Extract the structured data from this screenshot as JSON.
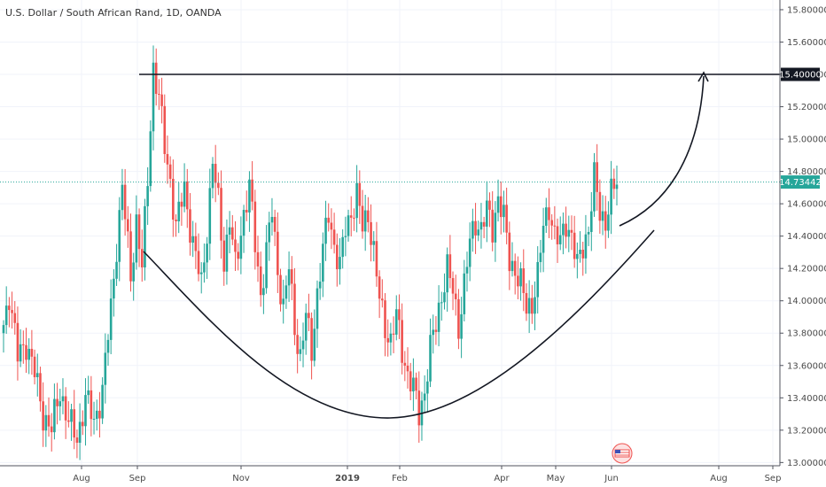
{
  "chart_data": {
    "type": "candlestick",
    "title": "U.S. Dollar / South African Rand, 1D, OANDA",
    "ylim": [
      12.98,
      15.86
    ],
    "yticks": [
      "15.80000",
      "15.60000",
      "15.40000",
      "15.20000",
      "15.00000",
      "14.80000",
      "14.60000",
      "14.40000",
      "14.20000",
      "14.00000",
      "13.80000",
      "13.60000",
      "13.40000",
      "13.20000",
      "13.00000"
    ],
    "yvalues": [
      15.8,
      15.6,
      15.4,
      15.2,
      15.0,
      14.8,
      14.6,
      14.4,
      14.2,
      14.0,
      13.8,
      13.6,
      13.4,
      13.2,
      13.0
    ],
    "xticks": [
      {
        "label": "Aug",
        "bold": false
      },
      {
        "label": "Sep",
        "bold": false
      },
      {
        "label": "Nov",
        "bold": false
      },
      {
        "label": "2019",
        "bold": true
      },
      {
        "label": "Feb",
        "bold": false
      },
      {
        "label": "Apr",
        "bold": false
      },
      {
        "label": "May",
        "bold": false
      },
      {
        "label": "Jun",
        "bold": false
      },
      {
        "label": "Aug",
        "bold": false
      },
      {
        "label": "Sep",
        "bold": false
      }
    ],
    "resistance": {
      "value": 15.4,
      "label": "15.40000"
    },
    "last_price": {
      "value": 14.73442,
      "label": "14.73442"
    },
    "up_color": "#26a69a",
    "down_color": "#ef5350",
    "keypoints": [
      [
        0,
        13.85
      ],
      [
        2,
        14.05
      ],
      [
        5,
        13.65
      ],
      [
        8,
        13.75
      ],
      [
        11,
        13.55
      ],
      [
        14,
        13.3
      ],
      [
        17,
        13.2
      ],
      [
        20,
        13.45
      ],
      [
        23,
        13.25
      ],
      [
        26,
        13.15
      ],
      [
        29,
        13.4
      ],
      [
        32,
        13.25
      ],
      [
        35,
        13.45
      ],
      [
        38,
        13.95
      ],
      [
        40,
        14.35
      ],
      [
        42,
        14.7
      ],
      [
        45,
        14.15
      ],
      [
        47,
        14.5
      ],
      [
        49,
        14.2
      ],
      [
        51,
        14.75
      ],
      [
        53,
        15.45
      ],
      [
        55,
        15.25
      ],
      [
        57,
        14.95
      ],
      [
        59,
        14.75
      ],
      [
        61,
        14.45
      ],
      [
        64,
        14.7
      ],
      [
        67,
        14.35
      ],
      [
        70,
        14.1
      ],
      [
        72,
        14.45
      ],
      [
        74,
        14.85
      ],
      [
        76,
        14.6
      ],
      [
        78,
        14.25
      ],
      [
        80,
        14.5
      ],
      [
        82,
        14.2
      ],
      [
        85,
        14.55
      ],
      [
        87,
        14.7
      ],
      [
        89,
        14.35
      ],
      [
        91,
        14.05
      ],
      [
        93,
        14.3
      ],
      [
        95,
        14.55
      ],
      [
        97,
        14.2
      ],
      [
        99,
        13.95
      ],
      [
        101,
        14.2
      ],
      [
        103,
        13.85
      ],
      [
        105,
        13.65
      ],
      [
        107,
        13.9
      ],
      [
        109,
        13.7
      ],
      [
        111,
        14.05
      ],
      [
        113,
        14.3
      ],
      [
        115,
        14.55
      ],
      [
        117,
        14.35
      ],
      [
        119,
        14.2
      ],
      [
        121,
        14.45
      ],
      [
        123,
        14.55
      ],
      [
        125,
        14.65
      ],
      [
        127,
        14.45
      ],
      [
        129,
        14.55
      ],
      [
        131,
        14.3
      ],
      [
        133,
        14.0
      ],
      [
        135,
        13.85
      ],
      [
        137,
        13.75
      ],
      [
        139,
        13.9
      ],
      [
        141,
        13.7
      ],
      [
        143,
        13.55
      ],
      [
        145,
        13.45
      ],
      [
        147,
        13.3
      ],
      [
        149,
        13.45
      ],
      [
        151,
        13.7
      ],
      [
        153,
        13.85
      ],
      [
        155,
        14.05
      ],
      [
        157,
        14.2
      ],
      [
        159,
        14.05
      ],
      [
        161,
        13.85
      ],
      [
        163,
        14.1
      ],
      [
        165,
        14.35
      ],
      [
        167,
        14.5
      ],
      [
        169,
        14.45
      ],
      [
        171,
        14.55
      ],
      [
        173,
        14.45
      ],
      [
        175,
        14.65
      ],
      [
        177,
        14.5
      ],
      [
        179,
        14.25
      ],
      [
        181,
        14.2
      ],
      [
        183,
        14.1
      ],
      [
        185,
        13.95
      ],
      [
        187,
        14.0
      ],
      [
        189,
        14.15
      ],
      [
        191,
        14.45
      ],
      [
        193,
        14.6
      ],
      [
        195,
        14.4
      ],
      [
        197,
        14.35
      ],
      [
        199,
        14.5
      ],
      [
        201,
        14.4
      ],
      [
        203,
        14.2
      ],
      [
        205,
        14.35
      ],
      [
        207,
        14.45
      ],
      [
        209,
        14.75
      ],
      [
        211,
        14.55
      ],
      [
        213,
        14.5
      ],
      [
        215,
        14.65
      ],
      [
        217,
        14.73
      ]
    ]
  }
}
